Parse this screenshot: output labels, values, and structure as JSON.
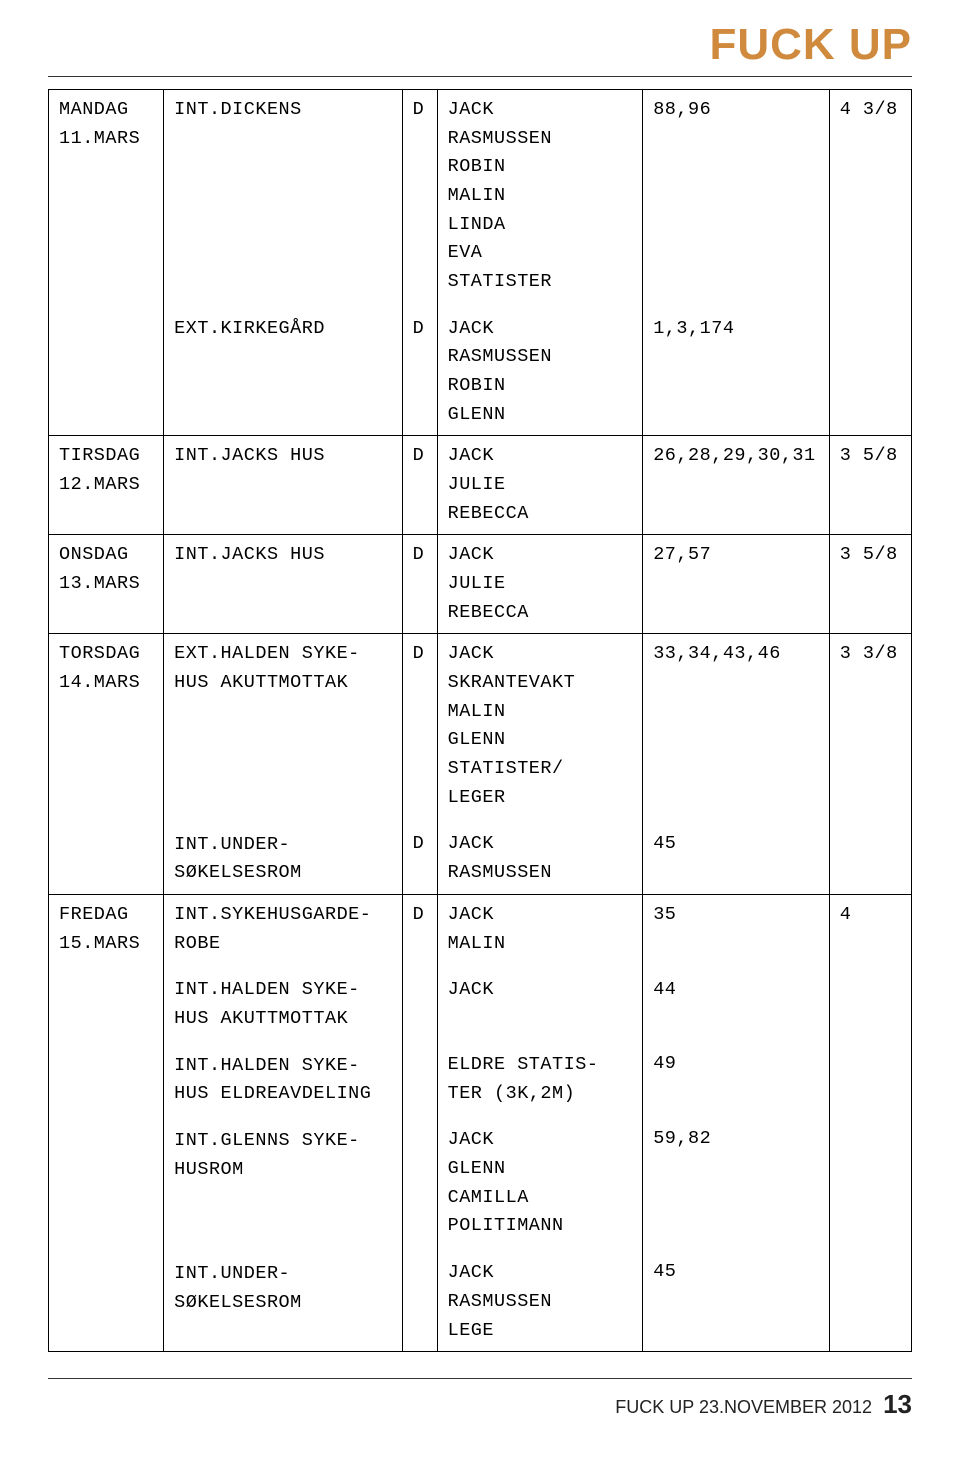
{
  "header": {
    "title": "FUCK UP",
    "title_color": "#d08a3e"
  },
  "rows": [
    {
      "day": "MANDAG\n11.MARS",
      "loc_blocks": [
        "INT.DICKENS",
        "EXT.KIRKEGÅRD"
      ],
      "dn_blocks": [
        "D",
        "D"
      ],
      "cast_blocks": [
        "JACK\nRASMUSSEN\nROBIN\nMALIN\nLINDA\nEVA\nSTATISTER",
        "JACK\nRASMUSSEN\nROBIN\nGLENN"
      ],
      "num_blocks": [
        "88,96",
        "1,3,174"
      ],
      "cnt": "4 3/8"
    },
    {
      "day": "TIRSDAG\n12.MARS",
      "loc_blocks": [
        "INT.JACKS HUS"
      ],
      "dn_blocks": [
        "D"
      ],
      "cast_blocks": [
        "JACK\nJULIE\nREBECCA"
      ],
      "num_blocks": [
        "26,28,29,30,31"
      ],
      "cnt": "3 5/8"
    },
    {
      "day": "ONSDAG\n13.MARS",
      "loc_blocks": [
        "INT.JACKS HUS"
      ],
      "dn_blocks": [
        "D"
      ],
      "cast_blocks": [
        "JACK\nJULIE\nREBECCA"
      ],
      "num_blocks": [
        "27,57"
      ],
      "cnt": "3 5/8"
    },
    {
      "day": "TORSDAG\n14.MARS",
      "loc_blocks": [
        "EXT.HALDEN SYKE-\nHUS AKUTTMOTTAK",
        "INT.UNDER-\nSØKELSESROM"
      ],
      "dn_blocks": [
        "D",
        "D"
      ],
      "cast_blocks": [
        "JACK\nSKRANTEVAKT\nMALIN\nGLENN\nSTATISTER/\nLEGER",
        "JACK\nRASMUSSEN"
      ],
      "num_blocks": [
        "33,34,43,46",
        "45"
      ],
      "cnt": "3 3/8"
    },
    {
      "day": "FREDAG\n15.MARS",
      "loc_blocks": [
        "INT.SYKEHUSGARDE-\nROBE",
        "INT.HALDEN SYKE-\nHUS AKUTTMOTTAK",
        "INT.HALDEN SYKE-\nHUS ELDREAVDELING",
        "INT.GLENNS SYKE-\nHUSROM",
        "INT.UNDER-\nSØKELSESROM"
      ],
      "dn_blocks": [
        "D",
        "",
        "",
        "",
        ""
      ],
      "cast_blocks": [
        "JACK\nMALIN",
        "JACK",
        "ELDRE STATIS-\nTER (3K,2M)",
        "JACK\nGLENN\nCAMILLA\nPOLITIMANN",
        "JACK\nRASMUSSEN\nLEGE"
      ],
      "num_blocks": [
        "35",
        "44",
        "49",
        "59,82",
        "45"
      ],
      "cnt": "4"
    }
  ],
  "footer": {
    "text": "FUCK UP 23.NOVEMBER 2012",
    "page": "13"
  }
}
